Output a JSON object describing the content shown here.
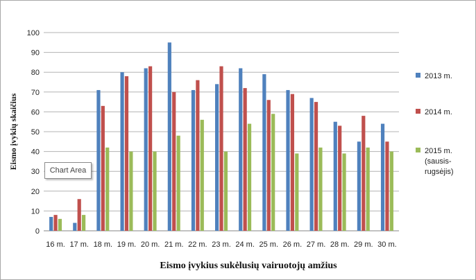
{
  "chart_data": {
    "type": "bar",
    "title": "",
    "xlabel": "Eismo įvykius sukėlusių vairuotojų  amžius",
    "ylabel": "Eismo įvykių skaičius",
    "ylim": [
      0,
      100
    ],
    "yticks": [
      0,
      10,
      20,
      30,
      40,
      50,
      60,
      70,
      80,
      90,
      100
    ],
    "grid": true,
    "legend_position": "right",
    "categories": [
      "16 m.",
      "17 m.",
      "18 m.",
      "19 m.",
      "20 m.",
      "21 m.",
      "22 m.",
      "23 m.",
      "24 m.",
      "25 m.",
      "26 m.",
      "27 m.",
      "28 m.",
      "29 m.",
      "30 m."
    ],
    "series": [
      {
        "name": "2013 m.",
        "color": "#4f81bd",
        "values": [
          7,
          4,
          71,
          80,
          82,
          95,
          71,
          74,
          82,
          79,
          71,
          67,
          55,
          45,
          54
        ]
      },
      {
        "name": "2014 m.",
        "color": "#c0504d",
        "values": [
          8,
          16,
          63,
          78,
          83,
          70,
          76,
          83,
          72,
          66,
          69,
          65,
          53,
          58,
          45
        ]
      },
      {
        "name": "2015 m. (sausis-rugsėjis)",
        "legend_lines": [
          "2015 m.",
          "(sausis-",
          "rugsėjis)"
        ],
        "color": "#9bbb59",
        "values": [
          6,
          8,
          42,
          40,
          40,
          48,
          56,
          40,
          54,
          59,
          39,
          42,
          39,
          42,
          40
        ]
      }
    ]
  },
  "tooltip": {
    "label": "Chart Area"
  }
}
